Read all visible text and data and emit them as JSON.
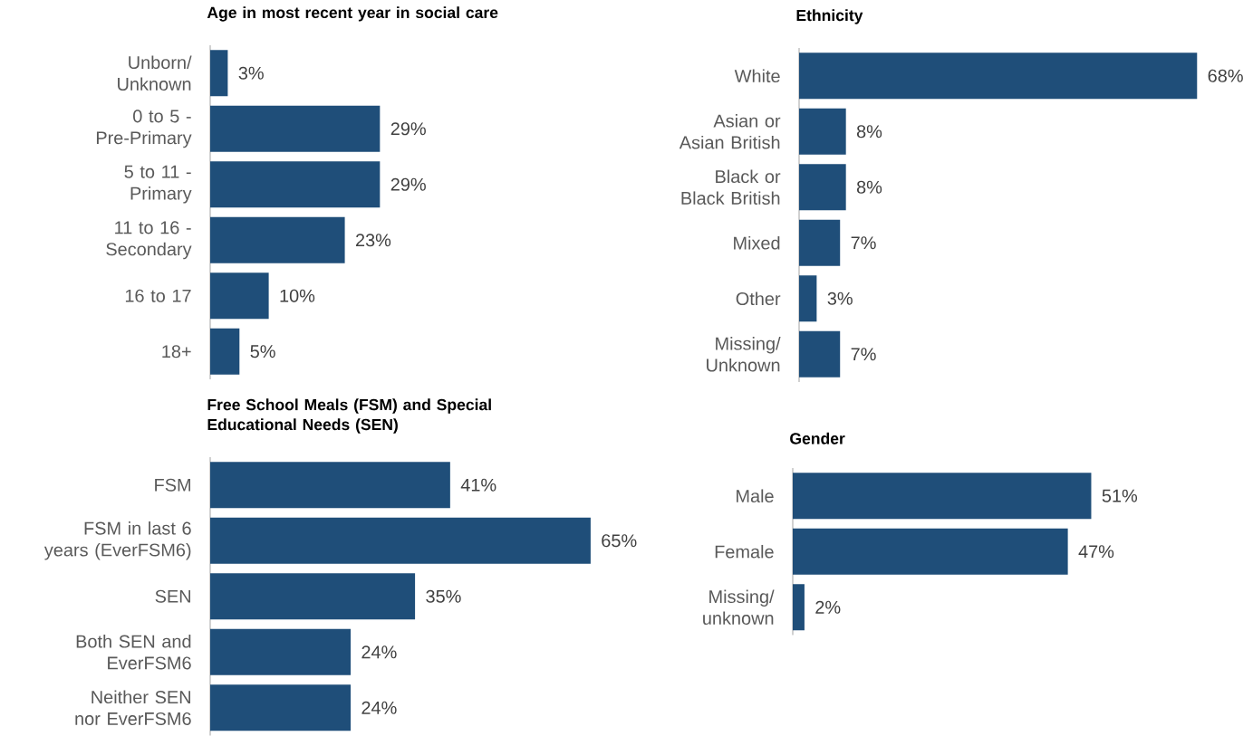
{
  "chart_data": [
    {
      "type": "bar",
      "orientation": "horizontal",
      "title": "Age in most recent year in social care",
      "categories": [
        "Unborn/ Unknown",
        "0 to 5 - Pre-Primary",
        "5 to 11 - Primary",
        "11 to 16 - Secondary",
        "16 to 17",
        "18+"
      ],
      "values": [
        3,
        29,
        29,
        23,
        10,
        5
      ],
      "value_labels": [
        "3%",
        "29%",
        "29%",
        "23%",
        "10%",
        "5%"
      ],
      "color": "#1f4e79",
      "tick_labels": "y"
    },
    {
      "type": "bar",
      "orientation": "horizontal",
      "title": "Ethnicity",
      "categories": [
        "White",
        "Asian or Asian British",
        "Black or Black British",
        "Mixed",
        "Other",
        "Missing/ Unknown"
      ],
      "values": [
        68,
        8,
        8,
        7,
        3,
        7
      ],
      "value_labels": [
        "68%",
        "8%",
        "8%",
        "7%",
        "3%",
        "7%"
      ],
      "color": "#1f4e79",
      "tick_labels": "y"
    },
    {
      "type": "bar",
      "orientation": "horizontal",
      "title": "Free School Meals (FSM) and Special Educational Needs (SEN)",
      "categories": [
        "FSM",
        "FSM in last 6 years (EverFSM6)",
        "SEN",
        "Both SEN and EverFSM6",
        "Neither SEN nor EverFSM6"
      ],
      "values": [
        41,
        65,
        35,
        24,
        24
      ],
      "value_labels": [
        "41%",
        "65%",
        "35%",
        "24%",
        "24%"
      ],
      "color": "#1f4e79",
      "tick_labels": "y"
    },
    {
      "type": "bar",
      "orientation": "horizontal",
      "title": "Gender",
      "categories": [
        "Male",
        "Female",
        "Missing/ unknown"
      ],
      "values": [
        51,
        47,
        2
      ],
      "value_labels": [
        "51%",
        "47%",
        "2%"
      ],
      "color": "#1f4e79",
      "tick_labels": "y"
    }
  ]
}
